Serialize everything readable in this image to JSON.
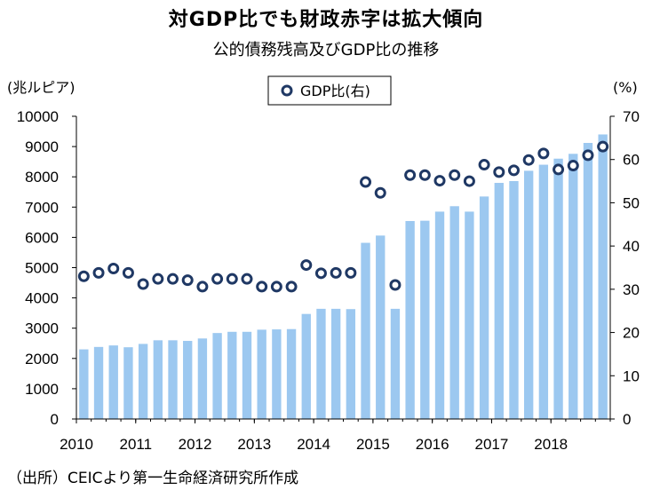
{
  "title": "対GDP比でも財政赤字は拡大傾向",
  "subtitle": "公的債務残高及びGDP比の推移",
  "source": "（出所）CEICより第一生命経済研究所作成",
  "chart_data": {
    "type": "bar+scatter",
    "title": "対GDP比でも財政赤字は拡大傾向",
    "subtitle": "公的債務残高及びGDP比の推移",
    "y_left_label": "(兆ルピア)",
    "y_right_label": "(%)",
    "y_left_lim": [
      0,
      10000
    ],
    "y_right_lim": [
      0,
      70
    ],
    "y_left_ticks": [
      "0",
      "1000",
      "2000",
      "3000",
      "4000",
      "5000",
      "6000",
      "7000",
      "8000",
      "9000",
      "10000"
    ],
    "y_right_ticks": [
      "0",
      "10",
      "20",
      "30",
      "40",
      "50",
      "60",
      "70"
    ],
    "x_ticks": [
      "2010",
      "2011",
      "2012",
      "2013",
      "2014",
      "2015",
      "2016",
      "2017",
      "2018"
    ],
    "legend": {
      "label": "GDP比(右)",
      "position": "top-center"
    },
    "bar_color": "#9cc8f0",
    "marker_color": "#1f3864",
    "series": [
      {
        "name": "公的債務残高",
        "axis": "left",
        "values": [
          2300,
          2380,
          2430,
          2370,
          2480,
          2600,
          2600,
          2580,
          2660,
          2840,
          2880,
          2880,
          2950,
          2960,
          2970,
          3470,
          3640,
          3640,
          3630,
          5820,
          6060,
          3640,
          6540,
          6550,
          6850,
          7030,
          6850,
          7350,
          7800,
          7860,
          8200,
          8400,
          8600,
          8760,
          9120,
          9400
        ]
      },
      {
        "name": "GDP比(右)",
        "axis": "right",
        "values": [
          33.0,
          33.8,
          34.8,
          33.8,
          31.2,
          32.4,
          32.4,
          32.1,
          30.6,
          32.4,
          32.4,
          32.4,
          30.6,
          30.6,
          30.6,
          35.6,
          33.7,
          33.8,
          33.8,
          54.8,
          52.3,
          31.0,
          56.4,
          56.4,
          55.1,
          56.4,
          55.0,
          58.8,
          57.1,
          57.5,
          59.9,
          61.4,
          57.7,
          58.6,
          61.0,
          63.0
        ]
      }
    ]
  }
}
